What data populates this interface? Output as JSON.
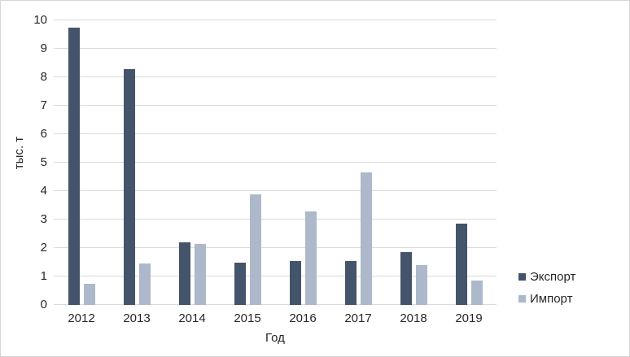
{
  "chart_data": {
    "type": "bar",
    "title": "",
    "xlabel": "Год",
    "ylabel": "тыс. т",
    "categories": [
      "2012",
      "2013",
      "2014",
      "2015",
      "2016",
      "2017",
      "2018",
      "2019"
    ],
    "series": [
      {
        "name": "Экспорт",
        "color": "#44546A",
        "values": [
          9.75,
          8.3,
          2.2,
          1.5,
          1.55,
          1.55,
          1.85,
          2.85
        ]
      },
      {
        "name": "Импорт",
        "color": "#ADB9CA",
        "values": [
          0.73,
          1.45,
          2.15,
          3.9,
          3.3,
          4.65,
          1.4,
          0.85
        ]
      }
    ],
    "ylim": [
      0,
      10
    ],
    "yticks": [
      0,
      1,
      2,
      3,
      4,
      5,
      6,
      7,
      8,
      9,
      10
    ],
    "grid": true,
    "legend_position": "right"
  },
  "colors": {
    "background": "#FFFFFF",
    "gridline": "#DADADA",
    "border": "#D6D6D6",
    "axis_text": "#262626"
  }
}
